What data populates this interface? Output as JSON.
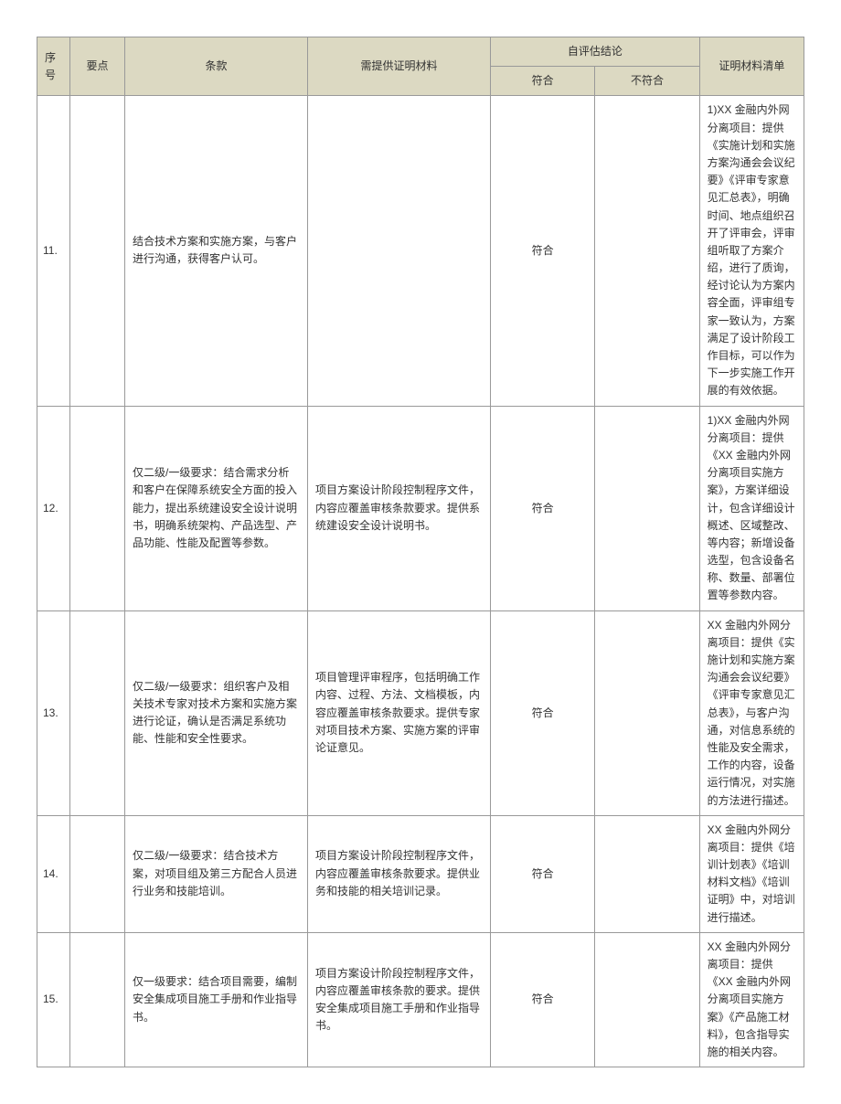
{
  "headers": {
    "num": "序号",
    "point": "要点",
    "clause": "条款",
    "material": "需提供证明材料",
    "result_group": "自评估结论",
    "result_yes": "符合",
    "result_no": "不符合",
    "list": "证明材料清单"
  },
  "rows": [
    {
      "num": "11.",
      "point": "",
      "clause": "结合技术方案和实施方案，与客户进行沟通，获得客户认可。",
      "material": "",
      "result": "符合",
      "list": "1)XX 金融内外网分离项目：提供《实施计划和实施方案沟通会会议纪要》《评审专家意见汇总表》，明确时间、地点组织召开了评审会，评审组听取了方案介绍，进行了质询，经讨论认为方案内容全面，评审组专家一致认为，方案满足了设计阶段工作目标，可以作为下一步实施工作开展的有效依据。"
    },
    {
      "num": "12.",
      "point": "",
      "clause": "仅二级/一级要求：结合需求分析和客户在保障系统安全方面的投入能力，提出系统建设安全设计说明书，明确系统架构、产品选型、产品功能、性能及配置等参数。",
      "material": "项目方案设计阶段控制程序文件，内容应覆盖审核条款要求。提供系统建设安全设计说明书。",
      "result": "符合",
      "list": "1)XX 金融内外网分离项目：提供《XX 金融内外网分离项目实施方案》，方案详细设计，包含详细设计概述、区域整改、等内容；新增设备选型，包含设备名称、数量、部署位置等参数内容。"
    },
    {
      "num": "13.",
      "point": "",
      "clause": "仅二级/一级要求：组织客户及相关技术专家对技术方案和实施方案进行论证，确认是否满足系统功能、性能和安全性要求。",
      "material": "项目管理评审程序，包括明确工作内容、过程、方法、文档模板，内容应覆盖审核条款要求。提供专家对项目技术方案、实施方案的评审论证意见。",
      "result": "符合",
      "list": "XX 金融内外网分离项目：提供《实施计划和实施方案沟通会会议纪要》《评审专家意见汇总表》，与客户沟通，对信息系统的性能及安全需求，工作的内容，设备运行情况，对实施的方法进行描述。"
    },
    {
      "num": "14.",
      "point": "",
      "clause": "仅二级/一级要求：结合技术方案，对项目组及第三方配合人员进行业务和技能培训。",
      "material": "项目方案设计阶段控制程序文件，内容应覆盖审核条款要求。提供业务和技能的相关培训记录。",
      "result": "符合",
      "list": "XX 金融内外网分离项目：提供《培训计划表》《培训材料文档》《培训证明》中，对培训进行描述。"
    },
    {
      "num": "15.",
      "point": "",
      "clause": "仅一级要求：结合项目需要，编制安全集成项目施工手册和作业指导书。",
      "material": "项目方案设计阶段控制程序文件，内容应覆盖审核条款的要求。提供安全集成项目施工手册和作业指导书。",
      "result": "符合",
      "list": "XX 金融内外网分离项目：提供《XX 金融内外网分离项目实施方案》《产品施工材料》，包含指导实施的相关内容。"
    }
  ],
  "style": {
    "header_bg": "#dcd9c2",
    "border_color": "#999999",
    "font_size": 12,
    "text_color": "#333333"
  }
}
